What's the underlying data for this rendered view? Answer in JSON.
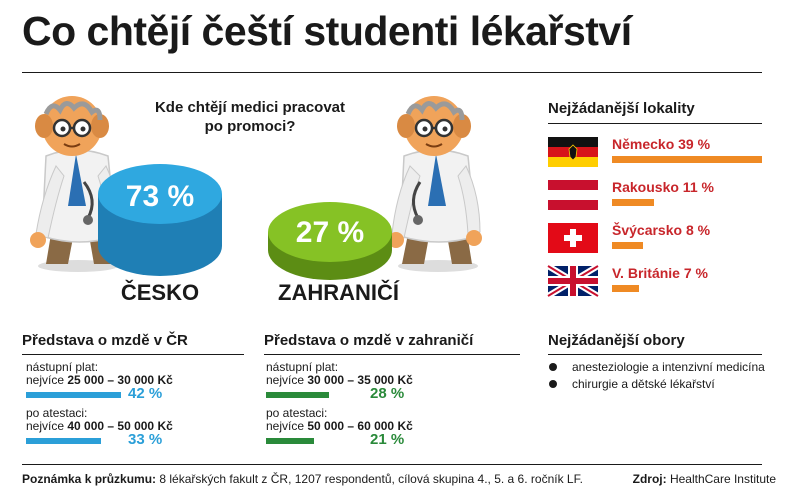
{
  "title": "Co chtějí čeští studenti lékařství",
  "question": "Kde chtějí medici pracovat po promoci?",
  "split": [
    {
      "label": "ČESKO",
      "value": "73 %",
      "color": "#2b9fd8"
    },
    {
      "label": "ZAHRANIČÍ",
      "value": "27 %",
      "color": "#7ab51d"
    }
  ],
  "locations": {
    "title": "Nejžádanější lokality",
    "items": [
      {
        "label": "Německo 39 %",
        "value": 39,
        "flag": "germany-flag-icon"
      },
      {
        "label": "Rakousko 11 %",
        "value": 11,
        "flag": "austria-flag-icon"
      },
      {
        "label": "Švýcarsko 8 %",
        "value": 8,
        "flag": "switzerland-flag-icon"
      },
      {
        "label": "V. Británie 7 %",
        "value": 7,
        "flag": "uk-flag-icon"
      }
    ],
    "bar_color": "#ef8a24"
  },
  "salary_cz": {
    "title": "Představa o mzdě v ČR",
    "rows": [
      {
        "label": "nástupní plat:",
        "range_prefix": "nejvíce ",
        "range": "25 000 – 30 000 Kč",
        "pct": "42 %"
      },
      {
        "label": "po atestaci:",
        "range_prefix": "nejvíce ",
        "range": "40 000 – 50 000 Kč",
        "pct": "33 %"
      }
    ],
    "color": "#2b9fd8"
  },
  "salary_abroad": {
    "title": "Představa o mzdě v zahraničí",
    "rows": [
      {
        "label": "nástupní plat:",
        "range_prefix": "nejvíce ",
        "range": "30 000 – 35 000 Kč",
        "pct": "28 %"
      },
      {
        "label": "po atestaci:",
        "range_prefix": "nejvíce ",
        "range": "50 000 – 60 000 Kč",
        "pct": "21 %"
      }
    ],
    "color": "#2a8a3a"
  },
  "fields": {
    "title": "Nejžádanější obory",
    "items": [
      "anesteziologie a intenzivní medicína",
      "chirurgie a dětské lékařství"
    ]
  },
  "footer": {
    "note_label": "Poznámka k průzkumu:",
    "note_text": " 8 lékařských fakult z ČR, 1207 respondentů, cílová skupina 4., 5. a 6. ročník LF.",
    "source_label": "Zdroj:",
    "source_text": " HealthCare Institute"
  },
  "chart_data": {
    "type": "bar",
    "title": "Co chtějí čeští studenti lékařství",
    "subcharts": [
      {
        "name": "Kde chtějí medici pracovat po promoci?",
        "categories": [
          "ČESKO",
          "ZAHRANIČÍ"
        ],
        "values": [
          73,
          27
        ],
        "unit": "%"
      },
      {
        "name": "Nejžádanější lokality",
        "categories": [
          "Německo",
          "Rakousko",
          "Švýcarsko",
          "V. Británie"
        ],
        "values": [
          39,
          11,
          8,
          7
        ],
        "unit": "%"
      },
      {
        "name": "Představa o mzdě v ČR",
        "categories": [
          "nástupní plat: nejvíce 25 000 – 30 000 Kč",
          "po atestaci: nejvíce 40 000 – 50 000 Kč"
        ],
        "values": [
          42,
          33
        ],
        "unit": "%"
      },
      {
        "name": "Představa o mzdě v zahraničí",
        "categories": [
          "nástupní plat: nejvíce 30 000 – 35 000 Kč",
          "po atestaci: nejvíce 50 000 – 60 000 Kč"
        ],
        "values": [
          28,
          21
        ],
        "unit": "%"
      }
    ]
  }
}
